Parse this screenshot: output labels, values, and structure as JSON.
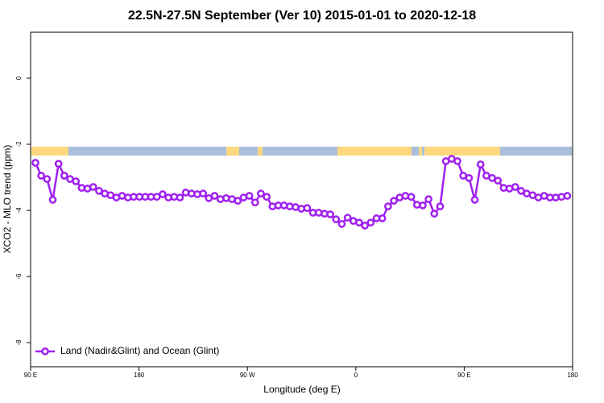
{
  "chart_data": {
    "type": "line",
    "title": "22.5N-27.5N September (Ver 10)   2015-01-01 to 2020-12-18",
    "x_label": "Longitude (deg E)",
    "y_label": "XCO2 - MLO trend (ppm)",
    "xlim": [
      90,
      540
    ],
    "ylim": [
      -8.73,
      1.39
    ],
    "xticks": [
      {
        "value": 90,
        "label": "90 E"
      },
      {
        "value": 180,
        "label": "180"
      },
      {
        "value": 270,
        "label": "90 W"
      },
      {
        "value": 360,
        "label": "0"
      },
      {
        "value": 450,
        "label": "90 E"
      },
      {
        "value": 540,
        "label": "180"
      }
    ],
    "yticks": [
      0,
      -2,
      -4,
      -6,
      -8
    ],
    "legend_position": "bottom-left",
    "x": [
      94,
      98.8,
      103.6,
      108.4,
      113.2,
      118,
      122.8,
      127.6,
      132.4,
      137.2,
      142,
      146.8,
      151.6,
      156.4,
      161.2,
      166,
      170.8,
      175.6,
      180.4,
      185.2,
      190,
      194.8,
      199.6,
      204.4,
      209.2,
      214,
      218.8,
      223.6,
      228.4,
      233.2,
      238,
      242.8,
      247.6,
      252.4,
      257.2,
      262,
      266.8,
      271.6,
      276.4,
      281.2,
      286,
      290.8,
      295.6,
      300.4,
      305.2,
      310,
      314.8,
      319.6,
      324.4,
      329.2,
      334,
      338.8,
      343.6,
      348.4,
      353.2,
      358,
      362.8,
      367.6,
      372.4,
      377.2,
      382,
      386.8,
      391.6,
      396.4,
      401.2,
      406,
      410.8,
      415.6,
      420.4,
      425.2,
      430,
      434.8,
      439.6,
      444.4,
      449.2,
      454,
      458.8,
      463.6,
      468.4,
      473.2,
      478,
      482.8,
      487.6,
      492.4,
      497.2,
      502,
      506.8,
      511.6,
      516.4,
      521.2,
      526,
      530.8,
      535.6
    ],
    "series": [
      {
        "name": "Land (Nadir&Glint) and Ocean (Glint)",
        "color": "#a020f0",
        "values": [
          -2.56,
          -2.95,
          -3.05,
          -3.68,
          -2.59,
          -2.95,
          -3.05,
          -3.12,
          -3.32,
          -3.34,
          -3.29,
          -3.41,
          -3.49,
          -3.54,
          -3.61,
          -3.56,
          -3.61,
          -3.59,
          -3.59,
          -3.59,
          -3.59,
          -3.59,
          -3.51,
          -3.61,
          -3.59,
          -3.61,
          -3.46,
          -3.49,
          -3.51,
          -3.49,
          -3.63,
          -3.56,
          -3.66,
          -3.63,
          -3.66,
          -3.71,
          -3.61,
          -3.56,
          -3.76,
          -3.49,
          -3.59,
          -3.88,
          -3.85,
          -3.85,
          -3.88,
          -3.9,
          -3.95,
          -3.93,
          -4.07,
          -4.07,
          -4.1,
          -4.12,
          -4.27,
          -4.41,
          -4.22,
          -4.32,
          -4.37,
          -4.46,
          -4.37,
          -4.24,
          -4.24,
          -3.88,
          -3.71,
          -3.61,
          -3.56,
          -3.59,
          -3.83,
          -3.85,
          -3.66,
          -4.1,
          -3.88,
          -2.51,
          -2.44,
          -2.51,
          -2.95,
          -3.02,
          -3.68,
          -2.61,
          -2.95,
          -3.02,
          -3.1,
          -3.32,
          -3.34,
          -3.29,
          -3.41,
          -3.49,
          -3.54,
          -3.61,
          -3.56,
          -3.61,
          -3.61,
          -3.59,
          -3.56
        ]
      }
    ]
  }
}
